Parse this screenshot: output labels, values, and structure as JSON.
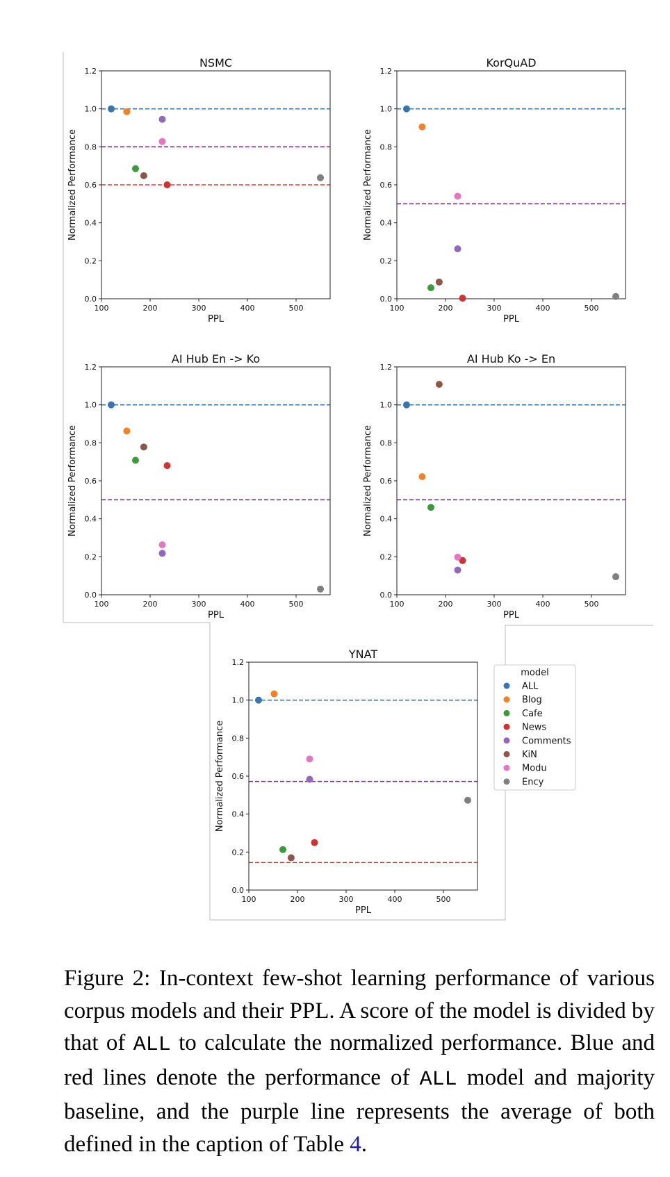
{
  "figure": {
    "panels": [
      {
        "title": "NSMC"
      },
      {
        "title": "KorQuAD"
      },
      {
        "title": "AI Hub En -> Ko"
      },
      {
        "title": "AI Hub Ko -> En"
      },
      {
        "title": "YNAT"
      }
    ],
    "legend": {
      "title": "model",
      "items": [
        "ALL",
        "Blog",
        "Cafe",
        "News",
        "Comments",
        "KiN",
        "Modu",
        "Ency"
      ]
    }
  },
  "colors": {
    "ALL": "#3a75b0",
    "Blog": "#f0822a",
    "Cafe": "#3c9a3c",
    "News": "#cc3333",
    "Comments": "#9467bd",
    "KiN": "#8c564b",
    "Modu": "#e377c2",
    "Ency": "#7f7f7f",
    "line_all": "#3a75b0",
    "line_average": "#7b2b8f",
    "line_majority": "#e03c31"
  },
  "chart_data": [
    {
      "type": "scatter",
      "title": "NSMC",
      "xlabel": "PPL",
      "ylabel": "Normalized Performance",
      "xlim": [
        100,
        570
      ],
      "ylim": [
        0,
        1.2
      ],
      "xticks": [
        "100",
        "200",
        "300",
        "400",
        "500"
      ],
      "yticks": [
        "0.0",
        "0.2",
        "0.4",
        "0.6",
        "0.8",
        "1.0",
        "1.2"
      ],
      "series": [
        {
          "name": "ALL",
          "x": 120,
          "y": 1.0
        },
        {
          "name": "Blog",
          "x": 152,
          "y": 0.985
        },
        {
          "name": "Cafe",
          "x": 170,
          "y": 0.685
        },
        {
          "name": "News",
          "x": 235,
          "y": 0.6
        },
        {
          "name": "Comments",
          "x": 225,
          "y": 0.945
        },
        {
          "name": "KiN",
          "x": 187,
          "y": 0.648
        },
        {
          "name": "Modu",
          "x": 225,
          "y": 0.828
        },
        {
          "name": "Ency",
          "x": 550,
          "y": 0.637
        }
      ],
      "hlines": [
        {
          "role": "ALL",
          "y": 1.0
        },
        {
          "role": "average",
          "y": 0.8
        },
        {
          "role": "majority",
          "y": 0.6
        }
      ]
    },
    {
      "type": "scatter",
      "title": "KorQuAD",
      "xlabel": "PPL",
      "ylabel": "Normalized Performance",
      "xlim": [
        100,
        570
      ],
      "ylim": [
        0,
        1.2
      ],
      "xticks": [
        "100",
        "200",
        "300",
        "400",
        "500"
      ],
      "yticks": [
        "0.0",
        "0.2",
        "0.4",
        "0.6",
        "0.8",
        "1.0",
        "1.2"
      ],
      "series": [
        {
          "name": "ALL",
          "x": 120,
          "y": 1.0
        },
        {
          "name": "Blog",
          "x": 152,
          "y": 0.905
        },
        {
          "name": "Cafe",
          "x": 170,
          "y": 0.058
        },
        {
          "name": "News",
          "x": 235,
          "y": 0.003
        },
        {
          "name": "Comments",
          "x": 225,
          "y": 0.263
        },
        {
          "name": "KiN",
          "x": 187,
          "y": 0.088
        },
        {
          "name": "Modu",
          "x": 225,
          "y": 0.54
        },
        {
          "name": "Ency",
          "x": 550,
          "y": 0.012
        }
      ],
      "hlines": [
        {
          "role": "ALL",
          "y": 1.0
        },
        {
          "role": "average",
          "y": 0.5
        }
      ]
    },
    {
      "type": "scatter",
      "title": "AI Hub En -> Ko",
      "xlabel": "PPL",
      "ylabel": "Normalized Performance",
      "xlim": [
        100,
        570
      ],
      "ylim": [
        0,
        1.2
      ],
      "xticks": [
        "100",
        "200",
        "300",
        "400",
        "500"
      ],
      "yticks": [
        "0.0",
        "0.2",
        "0.4",
        "0.6",
        "0.8",
        "1.0",
        "1.2"
      ],
      "series": [
        {
          "name": "ALL",
          "x": 120,
          "y": 1.0
        },
        {
          "name": "Blog",
          "x": 152,
          "y": 0.862
        },
        {
          "name": "Cafe",
          "x": 170,
          "y": 0.708
        },
        {
          "name": "News",
          "x": 235,
          "y": 0.68
        },
        {
          "name": "Comments",
          "x": 225,
          "y": 0.218
        },
        {
          "name": "KiN",
          "x": 187,
          "y": 0.778
        },
        {
          "name": "Modu",
          "x": 225,
          "y": 0.263
        },
        {
          "name": "Ency",
          "x": 550,
          "y": 0.03
        }
      ],
      "hlines": [
        {
          "role": "ALL",
          "y": 1.0
        },
        {
          "role": "average",
          "y": 0.5
        }
      ]
    },
    {
      "type": "scatter",
      "title": "AI Hub Ko -> En",
      "xlabel": "PPL",
      "ylabel": "Normalized Performance",
      "xlim": [
        100,
        570
      ],
      "ylim": [
        0,
        1.2
      ],
      "xticks": [
        "100",
        "200",
        "300",
        "400",
        "500"
      ],
      "yticks": [
        "0.0",
        "0.2",
        "0.4",
        "0.6",
        "0.8",
        "1.0",
        "1.2"
      ],
      "series": [
        {
          "name": "ALL",
          "x": 120,
          "y": 1.0
        },
        {
          "name": "Blog",
          "x": 152,
          "y": 0.622
        },
        {
          "name": "Cafe",
          "x": 170,
          "y": 0.46
        },
        {
          "name": "News",
          "x": 235,
          "y": 0.18
        },
        {
          "name": "Comments",
          "x": 225,
          "y": 0.13
        },
        {
          "name": "KiN",
          "x": 187,
          "y": 1.108
        },
        {
          "name": "Modu",
          "x": 225,
          "y": 0.198
        },
        {
          "name": "Ency",
          "x": 550,
          "y": 0.095
        }
      ],
      "hlines": [
        {
          "role": "ALL",
          "y": 1.0
        },
        {
          "role": "average",
          "y": 0.5
        }
      ]
    },
    {
      "type": "scatter",
      "title": "YNAT",
      "xlabel": "PPL",
      "ylabel": "Normalized Performance",
      "xlim": [
        100,
        570
      ],
      "ylim": [
        0,
        1.2
      ],
      "xticks": [
        "100",
        "200",
        "300",
        "400",
        "500"
      ],
      "yticks": [
        "0.0",
        "0.2",
        "0.4",
        "0.6",
        "0.8",
        "1.0",
        "1.2"
      ],
      "series": [
        {
          "name": "ALL",
          "x": 120,
          "y": 1.0
        },
        {
          "name": "Blog",
          "x": 152,
          "y": 1.033
        },
        {
          "name": "Cafe",
          "x": 170,
          "y": 0.213
        },
        {
          "name": "News",
          "x": 235,
          "y": 0.25
        },
        {
          "name": "Comments",
          "x": 225,
          "y": 0.583
        },
        {
          "name": "KiN",
          "x": 187,
          "y": 0.17
        },
        {
          "name": "Modu",
          "x": 225,
          "y": 0.69
        },
        {
          "name": "Ency",
          "x": 550,
          "y": 0.473
        }
      ],
      "hlines": [
        {
          "role": "ALL",
          "y": 1.0
        },
        {
          "role": "average",
          "y": 0.572
        },
        {
          "role": "majority",
          "y": 0.145
        }
      ]
    }
  ],
  "caption": {
    "lead": "Figure 2: In-context few-shot learning performance of various corpus models and their PPL. A score of the model is divided by that of ",
    "code1": "ALL",
    "mid1": " to calculate the normalized performance. Blue and red lines denote the performance of ",
    "code2": "ALL",
    "mid2": " model and majority baseline, and the purple line represents the average of both defined in the caption of Table ",
    "ref": "4",
    "end": "."
  }
}
